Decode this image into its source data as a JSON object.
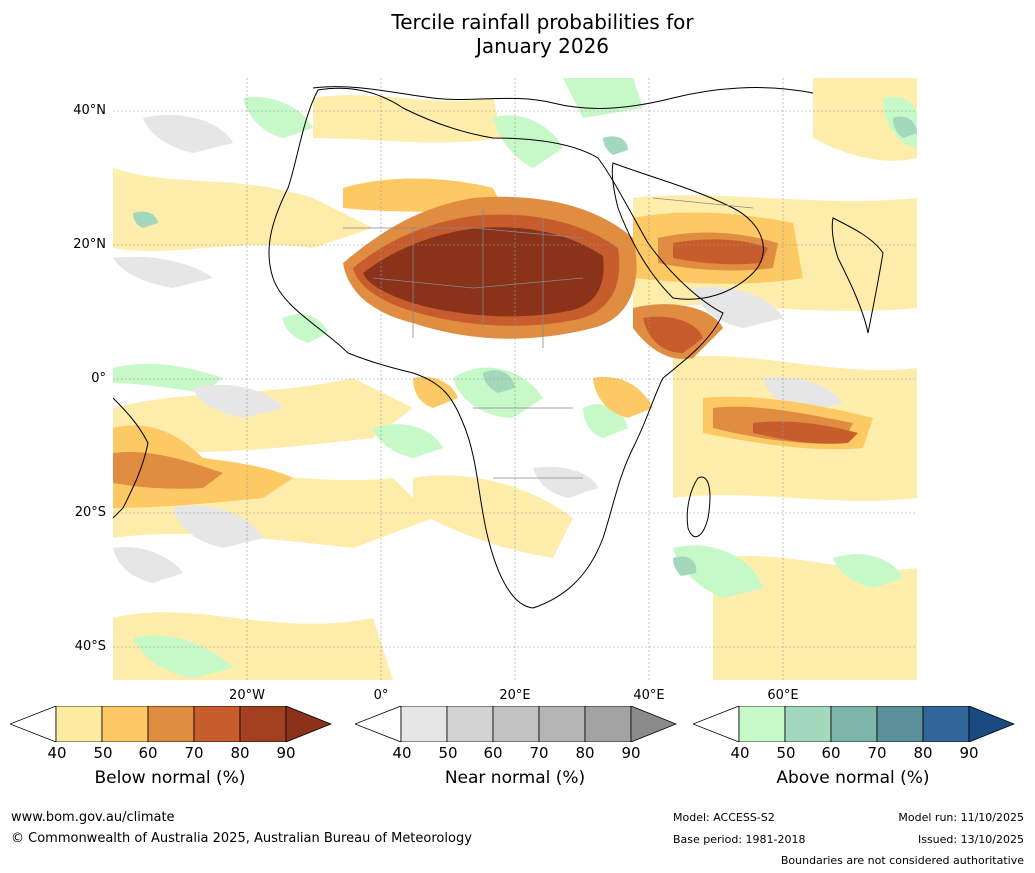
{
  "title_line1": "Tercile rainfall probabilities for",
  "title_line2": "January 2026",
  "map": {
    "lat_labels": [
      "40°N",
      "20°N",
      "0°",
      "20°S",
      "40°S"
    ],
    "lon_labels": [
      "20°W",
      "0°",
      "20°E",
      "40°E",
      "60°E"
    ]
  },
  "colorbars": [
    {
      "label": "Below normal (%)",
      "ticks": [
        "40",
        "50",
        "60",
        "70",
        "80",
        "90"
      ],
      "colors": [
        "#ffffff",
        "#feeba2",
        "#fdc965",
        "#e08c41",
        "#c75d2d",
        "#a2401f",
        "#8a321a"
      ]
    },
    {
      "label": "Near normal (%)",
      "ticks": [
        "40",
        "50",
        "60",
        "70",
        "80",
        "90"
      ],
      "colors": [
        "#ffffff",
        "#e6e6e6",
        "#d2d2d2",
        "#c2c2c2",
        "#b4b4b4",
        "#a2a2a2",
        "#8a8a8a"
      ]
    },
    {
      "label": "Above normal (%)",
      "ticks": [
        "40",
        "50",
        "60",
        "70",
        "80",
        "90"
      ],
      "colors": [
        "#ffffff",
        "#c6f8c8",
        "#a4d8bd",
        "#7db5a9",
        "#5b9099",
        "#32669a",
        "#1a4a82"
      ]
    }
  ],
  "footer": {
    "website": "www.bom.gov.au/climate",
    "copyright": "© Commonwealth of Australia 2025, Australian Bureau of Meteorology",
    "model": "Model: ACCESS-S2",
    "base_period": "Base period: 1981-2018",
    "model_run": "Model run: 11/10/2025",
    "issued": "Issued: 13/10/2025",
    "disclaimer": "Boundaries are not considered authoritative"
  }
}
